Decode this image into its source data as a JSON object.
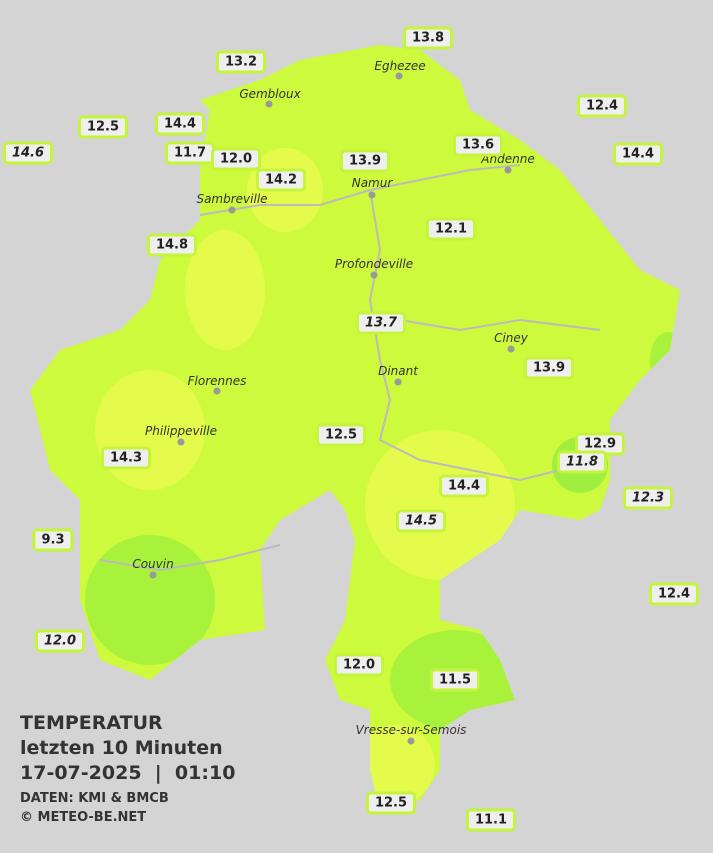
{
  "legend": {
    "title": "TEMPERATUR",
    "subtitle": "letzten 10 Minuten",
    "datetime": "17-07-2025  |  01:10",
    "source": "DATEN: KMI & BMCB",
    "copyright": "© METEO-BE.NET"
  },
  "cities": [
    "Eghezee",
    "Gembloux",
    "Andenne",
    "Namur",
    "Sambreville",
    "Profondeville",
    "Ciney",
    "Dinant",
    "Florennes",
    "Philippeville",
    "Couvin",
    "Vresse-sur-Semois"
  ],
  "stations": [
    {
      "label": "13.8",
      "italic": false
    },
    {
      "label": "13.2",
      "italic": false
    },
    {
      "label": "12.4",
      "italic": false
    },
    {
      "label": "12.5",
      "italic": false
    },
    {
      "label": "14.4",
      "italic": false
    },
    {
      "label": "14.6",
      "italic": true
    },
    {
      "label": "11.7",
      "italic": false
    },
    {
      "label": "12.0",
      "italic": false
    },
    {
      "label": "14.2",
      "italic": false
    },
    {
      "label": "13.9",
      "italic": false
    },
    {
      "label": "13.6",
      "italic": false
    },
    {
      "label": "14.4",
      "italic": false
    },
    {
      "label": "12.1",
      "italic": false
    },
    {
      "label": "14.8",
      "italic": false
    },
    {
      "label": "13.7",
      "italic": true
    },
    {
      "label": "13.9",
      "italic": false
    },
    {
      "label": "12.5",
      "italic": false
    },
    {
      "label": "14.3",
      "italic": false
    },
    {
      "label": "12.9",
      "italic": false
    },
    {
      "label": "11.8",
      "italic": true
    },
    {
      "label": "14.4",
      "italic": false
    },
    {
      "label": "14.5",
      "italic": true
    },
    {
      "label": "12.3",
      "italic": true
    },
    {
      "label": "9.3",
      "italic": false
    },
    {
      "label": "12.4",
      "italic": false
    },
    {
      "label": "12.0",
      "italic": true
    },
    {
      "label": "12.0",
      "italic": false
    },
    {
      "label": "11.5",
      "italic": false
    },
    {
      "label": "12.5",
      "italic": false
    },
    {
      "label": "11.1",
      "italic": false
    }
  ]
}
